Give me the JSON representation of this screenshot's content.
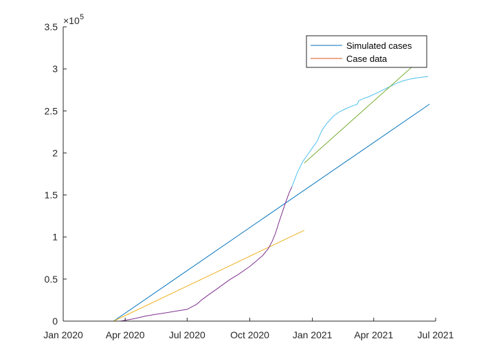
{
  "chart_data": {
    "type": "line",
    "title": "",
    "xlabel": "",
    "ylabel": "",
    "x_ticks": [
      "Jan 2020",
      "Apr 2020",
      "Jul 2020",
      "Oct 2020",
      "Jan 2021",
      "Apr 2021",
      "Jul 2021"
    ],
    "xlim": [
      "2020-01-01",
      "2021-07-01"
    ],
    "y_ticks": [
      "0",
      "0.5",
      "1",
      "1.5",
      "2",
      "2.5",
      "3",
      "3.5"
    ],
    "y_exponent": {
      "base": "×10",
      "power": "5"
    },
    "ylim": [
      0,
      350000
    ],
    "grid": false,
    "legend": {
      "location": "top-right",
      "entries": [
        {
          "name": "Simulated cases",
          "color": "#0072BD"
        },
        {
          "name": "Case data",
          "color": "#D95319"
        }
      ]
    },
    "series": [
      {
        "name": "Simulated cases",
        "color": "#0072BD",
        "points": [
          [
            "2020-03-15",
            0
          ],
          [
            "2021-06-22",
            258000
          ]
        ]
      },
      {
        "color": "#EDB120",
        "points": [
          [
            "2020-03-15",
            0
          ],
          [
            "2020-12-20",
            108000
          ]
        ]
      },
      {
        "color": "#7E2F8E",
        "points": [
          [
            "2020-03-25",
            0
          ],
          [
            "2020-04-01",
            1000
          ],
          [
            "2020-04-15",
            3000
          ],
          [
            "2020-05-01",
            6000
          ],
          [
            "2020-05-15",
            8000
          ],
          [
            "2020-06-01",
            10000
          ],
          [
            "2020-06-15",
            12000
          ],
          [
            "2020-07-01",
            14000
          ],
          [
            "2020-07-08",
            17000
          ],
          [
            "2020-07-15",
            20000
          ],
          [
            "2020-07-22",
            25000
          ],
          [
            "2020-08-01",
            31000
          ],
          [
            "2020-08-15",
            39000
          ],
          [
            "2020-09-01",
            49000
          ],
          [
            "2020-09-15",
            56000
          ],
          [
            "2020-10-01",
            65000
          ],
          [
            "2020-10-10",
            71000
          ],
          [
            "2020-10-20",
            78000
          ],
          [
            "2020-10-28",
            86000
          ],
          [
            "2020-11-03",
            95000
          ],
          [
            "2020-11-08",
            105000
          ],
          [
            "2020-11-13",
            118000
          ],
          [
            "2020-11-18",
            130000
          ],
          [
            "2020-11-23",
            142000
          ],
          [
            "2020-11-28",
            153000
          ],
          [
            "2020-12-02",
            160000
          ]
        ]
      },
      {
        "color": "#4DBEEE",
        "points": [
          [
            "2020-12-02",
            160000
          ],
          [
            "2020-12-10",
            177000
          ],
          [
            "2020-12-18",
            190000
          ],
          [
            "2020-12-25",
            198000
          ],
          [
            "2021-01-01",
            206000
          ],
          [
            "2021-01-08",
            214000
          ],
          [
            "2021-01-15",
            227000
          ],
          [
            "2021-01-22",
            235000
          ],
          [
            "2021-02-01",
            244000
          ],
          [
            "2021-02-10",
            249000
          ],
          [
            "2021-02-20",
            253000
          ],
          [
            "2021-03-01",
            256000
          ],
          [
            "2021-03-08",
            258000
          ],
          [
            "2021-03-10",
            262000
          ],
          [
            "2021-03-15",
            264000
          ],
          [
            "2021-03-25",
            267000
          ],
          [
            "2021-04-05",
            271000
          ],
          [
            "2021-04-15",
            275000
          ],
          [
            "2021-04-25",
            279000
          ],
          [
            "2021-05-05",
            283000
          ],
          [
            "2021-05-15",
            286000
          ],
          [
            "2021-05-25",
            288000
          ],
          [
            "2021-06-05",
            289500
          ],
          [
            "2021-06-20",
            291000
          ]
        ]
      },
      {
        "color": "#77AC30",
        "points": [
          [
            "2020-12-20",
            188000
          ],
          [
            "2021-05-31",
            305000
          ]
        ]
      }
    ]
  }
}
